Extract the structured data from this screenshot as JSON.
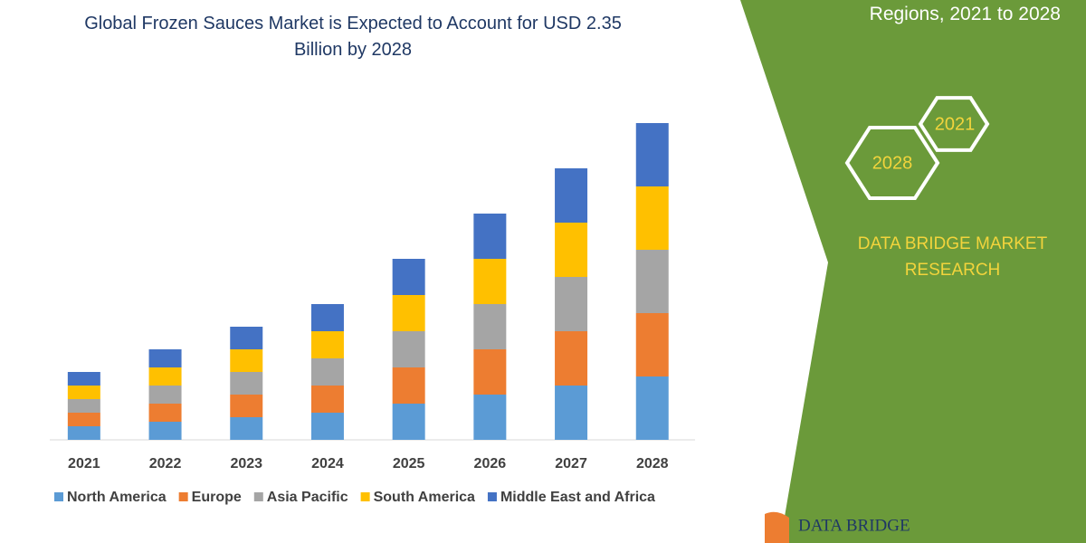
{
  "chart_data": {
    "type": "stacked-bar",
    "title": "Global Frozen Sauces Market is Expected to Account for USD 2.35 Billion by 2028",
    "categories": [
      "2021",
      "2022",
      "2023",
      "2024",
      "2025",
      "2026",
      "2027",
      "2028"
    ],
    "series": [
      {
        "name": "North America",
        "color": "#5b9bd5",
        "values": [
          15,
          20,
          25,
          30,
          40,
          50,
          60,
          70
        ]
      },
      {
        "name": "Europe",
        "color": "#ed7d31",
        "values": [
          15,
          20,
          25,
          30,
          40,
          50,
          60,
          70
        ]
      },
      {
        "name": "Asia Pacific",
        "color": "#a5a5a5",
        "values": [
          15,
          20,
          25,
          30,
          40,
          50,
          60,
          70
        ]
      },
      {
        "name": "South America",
        "color": "#ffc000",
        "values": [
          15,
          20,
          25,
          30,
          40,
          50,
          60,
          70
        ]
      },
      {
        "name": "Middle East and Africa",
        "color": "#4472c4",
        "values": [
          15,
          20,
          25,
          30,
          40,
          50,
          60,
          70
        ]
      }
    ],
    "ylim": [
      0,
      350
    ],
    "legend": "bottom"
  },
  "side_panel": {
    "subtitle": "Regions, 2021 to 2028",
    "hexagon_labels": [
      "2021",
      "2028"
    ],
    "brand": "DATA BRIDGE MARKET RESEARCH",
    "logo_text": "DATA BRIDGE"
  }
}
